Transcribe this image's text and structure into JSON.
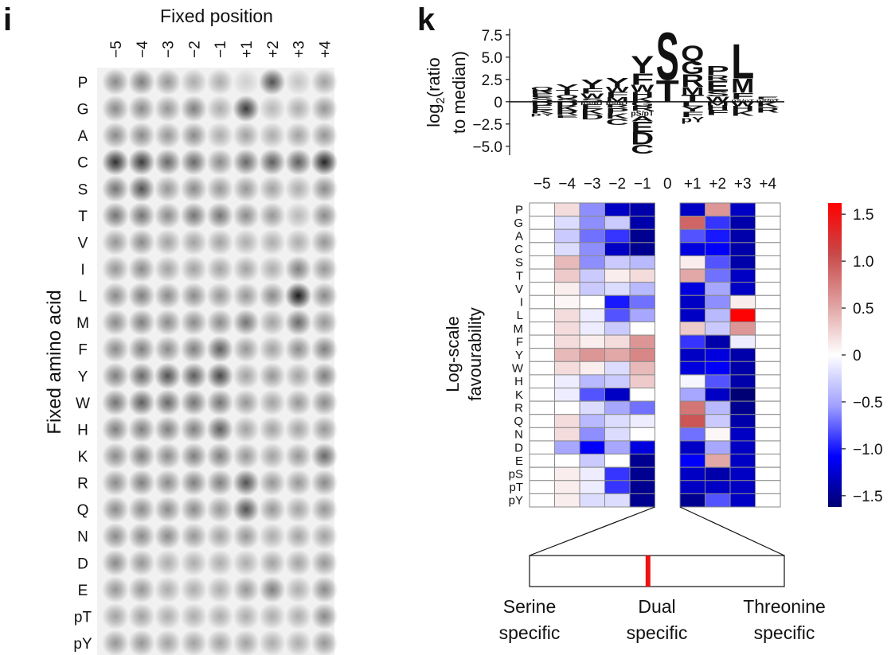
{
  "chart_data": [
    {
      "type": "spot_array",
      "panel": "i",
      "title": "Fixed position",
      "ylabel": "Fixed amino acid",
      "categories": [
        "−5",
        "−4",
        "−3",
        "−2",
        "−1",
        "+1",
        "+2",
        "+3",
        "+4"
      ],
      "rows": [
        "P",
        "G",
        "A",
        "C",
        "S",
        "T",
        "V",
        "I",
        "L",
        "M",
        "F",
        "Y",
        "W",
        "H",
        "K",
        "R",
        "Q",
        "N",
        "D",
        "E",
        "pT",
        "pY"
      ],
      "values": [
        [
          0.45,
          0.5,
          0.4,
          0.3,
          0.3,
          0.15,
          0.7,
          0.2,
          0.35
        ],
        [
          0.45,
          0.45,
          0.4,
          0.5,
          0.3,
          0.8,
          0.25,
          0.3,
          0.4
        ],
        [
          0.45,
          0.45,
          0.4,
          0.45,
          0.3,
          0.35,
          0.3,
          0.35,
          0.4
        ],
        [
          0.85,
          0.8,
          0.6,
          0.6,
          0.45,
          0.6,
          0.65,
          0.65,
          0.9
        ],
        [
          0.55,
          0.7,
          0.4,
          0.45,
          0.4,
          0.4,
          0.35,
          0.3,
          0.45
        ],
        [
          0.55,
          0.55,
          0.45,
          0.55,
          0.55,
          0.45,
          0.4,
          0.25,
          0.45
        ],
        [
          0.4,
          0.45,
          0.35,
          0.35,
          0.35,
          0.3,
          0.3,
          0.3,
          0.4
        ],
        [
          0.4,
          0.45,
          0.35,
          0.35,
          0.35,
          0.35,
          0.3,
          0.5,
          0.4
        ],
        [
          0.45,
          0.5,
          0.45,
          0.45,
          0.4,
          0.4,
          0.45,
          0.95,
          0.45
        ],
        [
          0.45,
          0.5,
          0.45,
          0.45,
          0.45,
          0.55,
          0.35,
          0.6,
          0.4
        ],
        [
          0.45,
          0.5,
          0.45,
          0.5,
          0.65,
          0.4,
          0.35,
          0.45,
          0.5
        ],
        [
          0.5,
          0.6,
          0.7,
          0.65,
          0.75,
          0.35,
          0.4,
          0.35,
          0.5
        ],
        [
          0.55,
          0.65,
          0.6,
          0.55,
          0.55,
          0.4,
          0.35,
          0.4,
          0.45
        ],
        [
          0.5,
          0.5,
          0.5,
          0.5,
          0.65,
          0.35,
          0.35,
          0.35,
          0.4
        ],
        [
          0.45,
          0.5,
          0.45,
          0.5,
          0.5,
          0.4,
          0.35,
          0.4,
          0.6
        ],
        [
          0.45,
          0.5,
          0.45,
          0.5,
          0.5,
          0.7,
          0.4,
          0.4,
          0.45
        ],
        [
          0.45,
          0.45,
          0.45,
          0.45,
          0.4,
          0.7,
          0.4,
          0.35,
          0.4
        ],
        [
          0.45,
          0.45,
          0.45,
          0.4,
          0.35,
          0.4,
          0.3,
          0.35,
          0.35
        ],
        [
          0.45,
          0.4,
          0.3,
          0.3,
          0.3,
          0.3,
          0.35,
          0.35,
          0.4
        ],
        [
          0.4,
          0.4,
          0.3,
          0.3,
          0.3,
          0.4,
          0.5,
          0.3,
          0.45
        ],
        [
          0.35,
          0.35,
          0.3,
          0.3,
          0.3,
          0.3,
          0.3,
          0.3,
          0.45
        ],
        [
          0.4,
          0.4,
          0.35,
          0.35,
          0.35,
          0.35,
          0.3,
          0.3,
          0.4
        ]
      ]
    },
    {
      "type": "logo",
      "panel": "k",
      "ylabel": [
        "log",
        "2",
        "(ratio",
        "to median)"
      ],
      "ylim": [
        -6,
        8.2
      ],
      "yticks": [
        7.5,
        {
          "value": 5,
          "label": "5.0"
        },
        2.5,
        0,
        {
          "value": -2.5,
          "label": "−2.5"
        },
        {
          "value": -5,
          "label": "−5.0"
        }
      ],
      "letter_colors": {
        "S": "#8e1f9e",
        "T": "#8e1f9e",
        "Q": "#8e1f9e",
        "N": "#8e1f9e",
        "G": "#1f9a3c",
        "C": "#d4a52a",
        "K": "#2336d0",
        "R": "#2336d0",
        "H": "#2336d0",
        "D": "#d91f3c",
        "E": "#d91f3c",
        "P": "#000000",
        "A": "#d4a52a",
        "V": "#d4a52a",
        "I": "#d4a52a",
        "L": "#d4a52a",
        "M": "#d4a52a",
        "F": "#d4a52a",
        "W": "#d4a52a",
        "Y": "#d4a52a",
        "pS/pT": "#e0207a",
        "pY": "#e0207a"
      },
      "stacks": [
        [
          {
            "letter": "S",
            "value": 0.5
          },
          {
            "letter": "E",
            "value": 0.4
          },
          {
            "letter": "R",
            "value": 0.4
          },
          {
            "letter": "Q",
            "value": 0.4
          },
          {
            "letter": "D",
            "value": -0.4
          },
          {
            "letter": "E",
            "value": -0.5
          },
          {
            "letter": "K",
            "value": -0.4
          },
          {
            "letter": "pY",
            "value": -0.3
          }
        ],
        [
          {
            "letter": "S",
            "value": 0.4
          },
          {
            "letter": "Q",
            "value": 0.4
          },
          {
            "letter": "T",
            "value": 0.5
          },
          {
            "letter": "Y",
            "value": 0.7
          },
          {
            "letter": "D",
            "value": -0.5
          },
          {
            "letter": "K",
            "value": -0.5
          },
          {
            "letter": "R",
            "value": -0.5
          },
          {
            "letter": "E",
            "value": -0.3
          }
        ],
        [
          {
            "letter": "S",
            "value": 0.4
          },
          {
            "letter": "W",
            "value": 0.5
          },
          {
            "letter": "F",
            "value": 0.6
          },
          {
            "letter": "Y",
            "value": 1.0
          },
          {
            "letter": "pS/pT",
            "value": -0.3
          },
          {
            "letter": "E",
            "value": -0.5
          },
          {
            "letter": "K",
            "value": -0.6
          },
          {
            "letter": "D",
            "value": -0.6
          }
        ],
        [
          {
            "letter": "M",
            "value": 0.5
          },
          {
            "letter": "F",
            "value": 0.6
          },
          {
            "letter": "W",
            "value": 0.6
          },
          {
            "letter": "Y",
            "value": 1.0
          },
          {
            "letter": "pS/pT",
            "value": -0.3
          },
          {
            "letter": "R",
            "value": -0.4
          },
          {
            "letter": "P",
            "value": -0.6
          },
          {
            "letter": "K",
            "value": -0.6
          },
          {
            "letter": "C",
            "value": -0.7
          }
        ],
        [
          {
            "letter": "K",
            "value": 0.5
          },
          {
            "letter": "H",
            "value": 0.6
          },
          {
            "letter": "W",
            "value": 0.8
          },
          {
            "letter": "F",
            "value": 1.3
          },
          {
            "letter": "Y",
            "value": 2.0
          },
          {
            "letter": "G",
            "value": -0.5
          },
          {
            "letter": "R",
            "value": -0.5
          },
          {
            "letter": "pS/pT",
            "value": -0.6
          },
          {
            "letter": "A",
            "value": -0.6
          },
          {
            "letter": "E",
            "value": -1.2
          },
          {
            "letter": "D",
            "value": -1.4
          },
          {
            "letter": "C",
            "value": -1.0
          }
        ],
        [
          {
            "letter": "T",
            "value": 2.5
          },
          {
            "letter": "S",
            "value": 5.5
          }
        ],
        [
          {
            "letter": "T",
            "value": 0.8
          },
          {
            "letter": "M",
            "value": 0.9
          },
          {
            "letter": "R",
            "value": 1.4
          },
          {
            "letter": "G",
            "value": 1.5
          },
          {
            "letter": "Q",
            "value": 1.8
          },
          {
            "letter": "L",
            "value": -0.5
          },
          {
            "letter": "Y",
            "value": -0.6
          },
          {
            "letter": "F",
            "value": -0.6
          },
          {
            "letter": "pY",
            "value": -0.6
          }
        ],
        [
          {
            "letter": "W",
            "value": 0.6
          },
          {
            "letter": "S",
            "value": 0.6
          },
          {
            "letter": "E",
            "value": 1.2
          },
          {
            "letter": "R",
            "value": 0.6
          },
          {
            "letter": "P",
            "value": 1.0
          },
          {
            "letter": "M",
            "value": -0.4
          },
          {
            "letter": "H",
            "value": -0.5
          },
          {
            "letter": "F",
            "value": -0.6
          }
        ],
        [
          {
            "letter": "pS/pT",
            "value": 0.3
          },
          {
            "letter": "F",
            "value": 0.7
          },
          {
            "letter": "M",
            "value": 1.6
          },
          {
            "letter": "L",
            "value": 4.0
          },
          {
            "letter": "W",
            "value": -0.5
          },
          {
            "letter": "H",
            "value": -0.5
          },
          {
            "letter": "K",
            "value": -0.6
          }
        ],
        [
          {
            "letter": "pS/pT",
            "value": 0.3
          },
          {
            "letter": "E",
            "value": 0.3
          },
          {
            "letter": "K",
            "value": -0.6
          },
          {
            "letter": "R",
            "value": -0.6
          }
        ]
      ]
    },
    {
      "type": "heatmap",
      "ylabel": [
        "Log-scale",
        "favourability"
      ],
      "categories": [
        "−5",
        "−4",
        "−3",
        "−2",
        "−1",
        "0",
        "+1",
        "+2",
        "+3",
        "+4"
      ],
      "rows": [
        "P",
        "G",
        "A",
        "C",
        "S",
        "T",
        "V",
        "I",
        "L",
        "M",
        "F",
        "Y",
        "W",
        "H",
        "K",
        "R",
        "Q",
        "N",
        "D",
        "E",
        "pS",
        "pT",
        "pY"
      ],
      "values": [
        [
          0,
          0.2,
          -0.6,
          -1.3,
          -1.4,
          null,
          -1.3,
          0.6,
          -1.3,
          0
        ],
        [
          0,
          -0.2,
          -0.6,
          -0.3,
          -1.4,
          null,
          0.9,
          -0.9,
          -1.4,
          0
        ],
        [
          0,
          -0.3,
          -0.7,
          -0.9,
          -1.5,
          null,
          -0.8,
          -1.0,
          -1.4,
          0
        ],
        [
          0,
          -0.2,
          -0.6,
          -1.3,
          -1.5,
          null,
          -1.2,
          -1.1,
          -1.4,
          0
        ],
        [
          0,
          0.4,
          -0.6,
          -0.3,
          -0.4,
          null,
          0.1,
          -0.8,
          -1.4,
          0
        ],
        [
          0,
          0.3,
          -0.3,
          0.1,
          0.2,
          null,
          0.5,
          -0.7,
          -1.3,
          0
        ],
        [
          0,
          0.1,
          -0.3,
          -0.2,
          -0.4,
          null,
          -1.2,
          -0.5,
          -1.3,
          0
        ],
        [
          0,
          0.05,
          0,
          -1.0,
          -0.7,
          null,
          -1.3,
          -0.6,
          0.1,
          0
        ],
        [
          0,
          0.2,
          -0.1,
          -0.8,
          -0.5,
          null,
          -1.3,
          -0.4,
          1.6,
          0
        ],
        [
          0,
          0.2,
          -0.1,
          -0.3,
          0,
          null,
          0.3,
          -0.3,
          0.6,
          0
        ],
        [
          0,
          0.2,
          0.1,
          0.2,
          0.6,
          null,
          -0.9,
          -1.4,
          -0.1,
          0
        ],
        [
          0,
          0.4,
          0.6,
          0.5,
          0.7,
          null,
          -1.3,
          -1.2,
          -1.4,
          0
        ],
        [
          0,
          0.2,
          0.1,
          -0.2,
          0.4,
          null,
          -1.2,
          -1.1,
          -1.4,
          0
        ],
        [
          0,
          -0.1,
          -0.4,
          -0.3,
          0.3,
          null,
          -0.05,
          -0.8,
          -1.4,
          0
        ],
        [
          0,
          -0.1,
          -0.8,
          -1.3,
          0,
          null,
          -0.5,
          -1.3,
          -1.6,
          0
        ],
        [
          0,
          0,
          -0.2,
          -0.5,
          -0.7,
          null,
          0.8,
          -0.4,
          -1.5,
          0
        ],
        [
          0,
          0.2,
          -0.4,
          -0.2,
          -0.1,
          null,
          1.0,
          -0.3,
          -1.4,
          0
        ],
        [
          0,
          0.2,
          -0.6,
          -0.2,
          0,
          null,
          -0.7,
          0.05,
          -1.3,
          0
        ],
        [
          0,
          -0.5,
          -1.1,
          -0.5,
          -1.2,
          null,
          -1.3,
          -0.5,
          -1.3,
          0
        ],
        [
          0,
          0,
          -0.3,
          0,
          -1.5,
          null,
          -1.1,
          0.5,
          -1.3,
          0
        ],
        [
          0,
          0.1,
          -0.1,
          -0.9,
          -1.5,
          null,
          -1.3,
          -1.4,
          -1.3,
          0
        ],
        [
          0,
          0.1,
          -0.1,
          -0.9,
          -1.5,
          null,
          -1.3,
          -1.3,
          -1.3,
          0
        ],
        [
          0,
          0.1,
          -0.2,
          -0.2,
          -1.5,
          null,
          -1.5,
          -0.8,
          -1.3,
          0
        ]
      ],
      "clim": [
        -1.62,
        1.62
      ],
      "cticks": [
        1.5,
        {
          "value": 1,
          "label": "1.0"
        },
        0.5,
        0,
        {
          "value": -0.5,
          "label": "−0.5"
        },
        {
          "value": -1,
          "label": "−1.0"
        },
        {
          "value": -1.5,
          "label": "−1.5"
        }
      ],
      "colors": {
        "negative": [
          "#ffffff",
          "#a0a0ff",
          "#0000ff",
          "#000070"
        ],
        "positive": [
          "#ffffff",
          "#e0a0a0",
          "#c84848",
          "#ff0000"
        ]
      }
    },
    {
      "type": "strip",
      "xlim": [
        -1,
        1
      ],
      "value": -0.07,
      "color": "#ee1111",
      "xticks": [
        {
          "value": -1,
          "label": [
            "Serine",
            "specific"
          ]
        },
        {
          "value": 0,
          "label": [
            "Dual",
            "specific"
          ]
        },
        {
          "value": 1,
          "label": [
            "Threonine",
            "specific"
          ]
        }
      ]
    }
  ]
}
